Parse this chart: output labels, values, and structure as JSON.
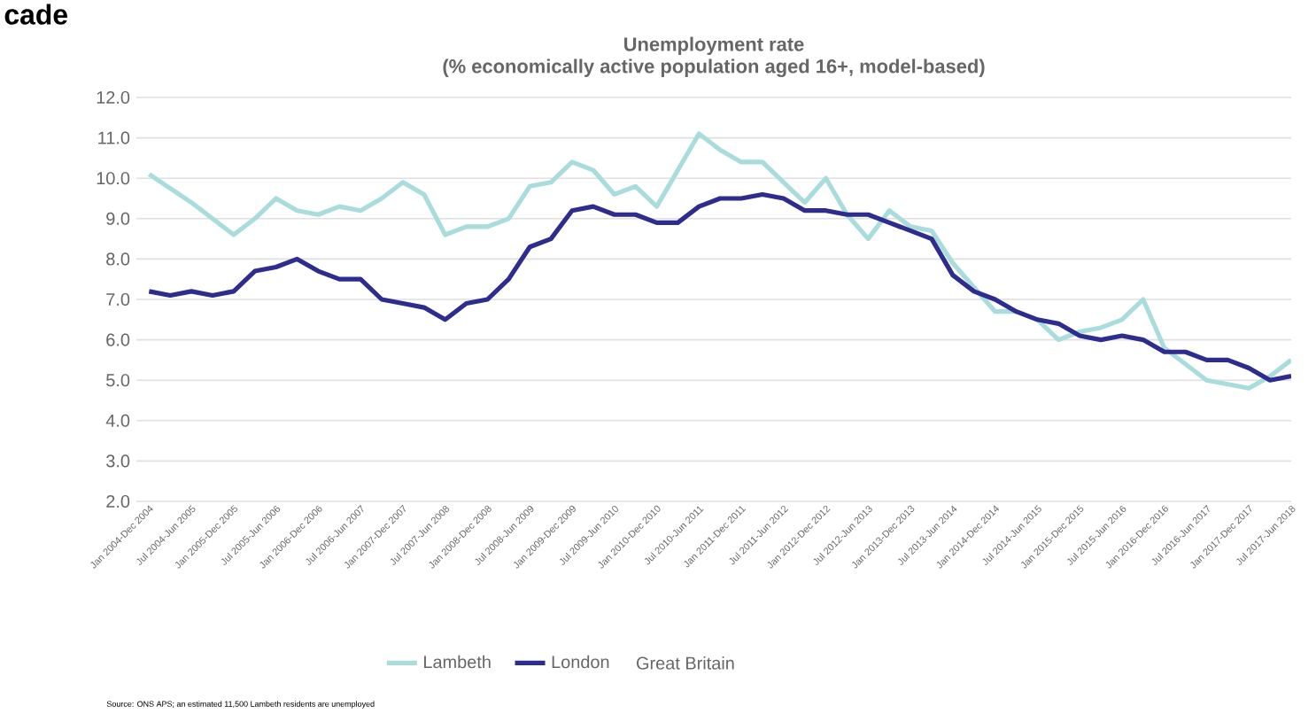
{
  "chart_data": {
    "type": "line",
    "title": "Unemployment rate",
    "subtitle": "(% economically active population aged 16+, model-based)",
    "categories": [
      "Jan 2004-Dec 2004",
      null,
      "Jul 2004-Jun 2005",
      null,
      "Jan 2005-Dec 2005",
      null,
      "Jul 2005-Jun 2006",
      null,
      "Jan 2006-Dec 2006",
      null,
      "Jul 2006-Jun 2007",
      null,
      "Jan 2007-Dec 2007",
      null,
      "Jul 2007-Jun 2008",
      null,
      "Jan 2008-Dec 2008",
      null,
      "Jul 2008-Jun 2009",
      null,
      "Jan 2009-Dec 2009",
      null,
      "Jul 2009-Jun 2010",
      null,
      "Jan 2010-Dec 2010",
      null,
      "Jul 2010-Jun 2011",
      null,
      "Jan 2011-Dec 2011",
      null,
      "Jul 2011-Jun 2012",
      null,
      "Jan 2012-Dec 2012",
      null,
      "Jul 2012-Jun 2013",
      null,
      "Jan 2013-Dec 2013",
      null,
      "Jul 2013-Jun 2014",
      null,
      "Jan 2014-Dec 2014",
      null,
      "Jul 2014-Jun 2015",
      null,
      "Jan 2015-Dec 2015",
      null,
      "Jul 2015-Jun 2016",
      null,
      "Jan 2016-Dec 2016",
      null,
      "Jul 2016-Jun 2017",
      null,
      "Jan 2017-Dec 2017",
      null,
      "Jul 2017-Jun 2018"
    ],
    "series": [
      {
        "name": "Lambeth",
        "color": "#a9dcdc",
        "values": [
          10.1,
          9.75,
          9.4,
          9.0,
          8.6,
          9.0,
          9.5,
          9.2,
          9.1,
          9.3,
          9.2,
          9.5,
          9.9,
          9.6,
          8.6,
          8.8,
          8.8,
          9.0,
          9.8,
          9.9,
          10.4,
          10.2,
          9.6,
          9.8,
          9.3,
          10.2,
          11.1,
          10.7,
          10.4,
          10.4,
          9.9,
          9.4,
          10.0,
          9.1,
          8.5,
          9.2,
          8.8,
          8.7,
          7.9,
          7.3,
          6.7,
          6.7,
          6.5,
          6.0,
          6.2,
          6.3,
          6.5,
          7.0,
          5.8,
          5.4,
          5.0,
          4.9,
          4.8,
          5.1,
          5.5
        ]
      },
      {
        "name": "London",
        "color": "#2e2d8f",
        "values": [
          7.2,
          7.1,
          7.2,
          7.1,
          7.2,
          7.7,
          7.8,
          8.0,
          7.7,
          7.5,
          7.5,
          7.0,
          6.9,
          6.8,
          6.5,
          6.9,
          7.0,
          7.5,
          8.3,
          8.5,
          9.2,
          9.3,
          9.1,
          9.1,
          8.9,
          8.9,
          9.3,
          9.5,
          9.5,
          9.6,
          9.5,
          9.2,
          9.2,
          9.1,
          9.1,
          8.9,
          8.7,
          8.5,
          7.6,
          7.2,
          7.0,
          6.7,
          6.5,
          6.4,
          6.1,
          6.0,
          6.1,
          6.0,
          5.7,
          5.7,
          5.5,
          5.5,
          5.3,
          5.0,
          5.1
        ]
      }
    ],
    "ylim": [
      2,
      12
    ],
    "yticks": [
      {
        "value": 2,
        "label": "2.0"
      },
      {
        "value": 3,
        "label": "3.0"
      },
      {
        "value": 4,
        "label": "4.0"
      },
      {
        "value": 5,
        "label": "5.0"
      },
      {
        "value": 6,
        "label": "6.0"
      },
      {
        "value": 7,
        "label": "7.0"
      },
      {
        "value": 8,
        "label": "8.0"
      },
      {
        "value": 9,
        "label": "9.0"
      },
      {
        "value": 10,
        "label": "10.0"
      },
      {
        "value": 11,
        "label": "11.0"
      },
      {
        "value": 12,
        "label": "12.0"
      }
    ],
    "grid": "y",
    "legend": "bottom",
    "annotations": [
      "cade",
      "Great Britain",
      "Source: ONS APS; an estimated 11,500 Lambeth residents are unemployed"
    ]
  }
}
